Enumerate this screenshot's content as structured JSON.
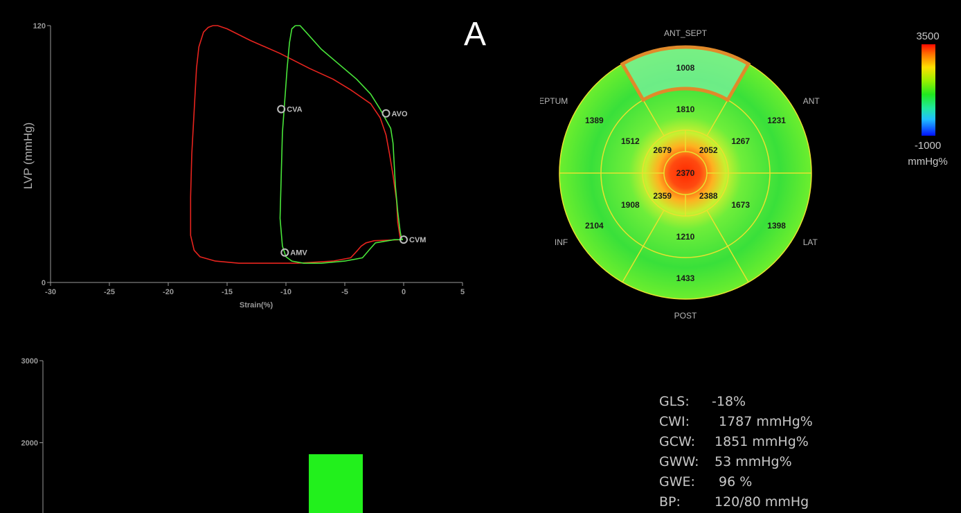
{
  "panel_label": "A",
  "colors": {
    "curve_red": "#e8241e",
    "curve_green": "#49e63a",
    "axis": "#9a9a9a",
    "marker": "#bdbdbd",
    "bullseye_line": "#e8e230",
    "highlight": "#e08a2a",
    "bar_fill": "#22f01c"
  },
  "chart_data": [
    {
      "type": "line",
      "title": "",
      "xlabel": "Strain(%)",
      "ylabel": "LVP (mmHg)",
      "xlim": [
        -30,
        5
      ],
      "ylim": [
        0,
        120
      ],
      "x_ticks": [
        "-30",
        "-25",
        "-20",
        "-15",
        "-10",
        "-5",
        "0",
        "5"
      ],
      "y_ticks": [
        "0",
        "120"
      ],
      "series": [
        {
          "color": "#e8241e",
          "points": [
            [
              -16.2,
              120
            ],
            [
              -15.8,
              120
            ],
            [
              -15,
              118.5
            ],
            [
              -13,
              113
            ],
            [
              -10.5,
              107
            ],
            [
              -8,
              100
            ],
            [
              -6,
              95
            ],
            [
              -4.5,
              90
            ],
            [
              -2.8,
              83.5
            ],
            [
              -2,
              77
            ],
            [
              -1.5,
              69
            ],
            [
              -1.2,
              60
            ],
            [
              -0.9,
              50
            ],
            [
              -0.6,
              38
            ],
            [
              -0.5,
              28
            ],
            [
              -0.3,
              21
            ],
            [
              -0.2,
              20
            ],
            [
              -2.5,
              19.5
            ],
            [
              -3.2,
              18.5
            ],
            [
              -3.6,
              17
            ],
            [
              -4,
              14.5
            ],
            [
              -4.5,
              11.5
            ],
            [
              -6,
              10
            ],
            [
              -9,
              9
            ],
            [
              -14,
              9
            ],
            [
              -16,
              10
            ],
            [
              -17.3,
              12
            ],
            [
              -17.8,
              15
            ],
            [
              -18.1,
              22
            ],
            [
              -18.1,
              40
            ],
            [
              -18,
              60
            ],
            [
              -17.8,
              80
            ],
            [
              -17.6,
              100
            ],
            [
              -17.4,
              110
            ],
            [
              -17,
              117
            ],
            [
              -16.6,
              119.2
            ],
            [
              -16.2,
              120
            ]
          ]
        },
        {
          "color": "#49e63a",
          "points": [
            [
              -9.2,
              120
            ],
            [
              -8.8,
              120
            ],
            [
              -8.3,
              117
            ],
            [
              -7,
              109
            ],
            [
              -5.5,
              102
            ],
            [
              -4,
              95
            ],
            [
              -2.8,
              88
            ],
            [
              -2,
              81
            ],
            [
              -1.4,
              75
            ],
            [
              -1.1,
              72
            ],
            [
              -0.9,
              65
            ],
            [
              -0.8,
              55
            ],
            [
              -0.7,
              45
            ],
            [
              -0.5,
              33
            ],
            [
              -0.3,
              24
            ],
            [
              -0.2,
              21
            ],
            [
              -0.1,
              20
            ],
            [
              -0.8,
              20
            ],
            [
              -2.4,
              18.5
            ],
            [
              -2.8,
              16
            ],
            [
              -3.5,
              11.5
            ],
            [
              -5,
              10
            ],
            [
              -7,
              9
            ],
            [
              -8.5,
              9
            ],
            [
              -9.5,
              10
            ],
            [
              -10,
              12
            ],
            [
              -10.3,
              17
            ],
            [
              -10.5,
              30
            ],
            [
              -10.4,
              50
            ],
            [
              -10.3,
              70
            ],
            [
              -10.1,
              85
            ],
            [
              -9.9,
              100
            ],
            [
              -9.7,
              112
            ],
            [
              -9.5,
              118.5
            ],
            [
              -9.2,
              120
            ]
          ]
        }
      ],
      "annotations": [
        {
          "label": "CVA",
          "x": -10.4,
          "y": 81
        },
        {
          "label": "AVO",
          "x": -1.5,
          "y": 79
        },
        {
          "label": "CVM",
          "x": 0,
          "y": 20
        },
        {
          "label": "AMV",
          "x": -10.1,
          "y": 14
        }
      ]
    },
    {
      "type": "heatmap",
      "title": "",
      "wall_labels": [
        "ANT_SEPT",
        "ANT",
        "LAT",
        "POST",
        "INF",
        "SEPTUM"
      ],
      "segments": {
        "basal": [
          "1008",
          "1231",
          "1398",
          "1433",
          "2104",
          "1389"
        ],
        "mid": [
          "1810",
          "1267",
          "1673",
          "1210",
          "1908",
          "1512"
        ],
        "apical": [
          "2052",
          "2388",
          "2359",
          "2679"
        ],
        "apex": "2370"
      },
      "highlighted_wall": "ANT_SEPT",
      "scale_max": "3500",
      "scale_min": "-1000",
      "scale_unit": "mmHg%",
      "range": [
        -1000,
        3500
      ]
    },
    {
      "type": "bar",
      "title": "",
      "values": [
        1860
      ],
      "ylim": [
        1000,
        3000
      ],
      "y_ticks": [
        "2000",
        "3000"
      ],
      "color": "#22f01c"
    }
  ],
  "stats": [
    {
      "label": "GLS:",
      "value": "-18%"
    },
    {
      "label": "CWI:",
      "value": "1787 mmHg%"
    },
    {
      "label": "GCW:",
      "value": "1851 mmHg%"
    },
    {
      "label": "GWW:",
      "value": "53 mmHg%"
    },
    {
      "label": "GWE:",
      "value": "96 %"
    },
    {
      "label": "BP:",
      "value": "120/80 mmHg"
    }
  ]
}
